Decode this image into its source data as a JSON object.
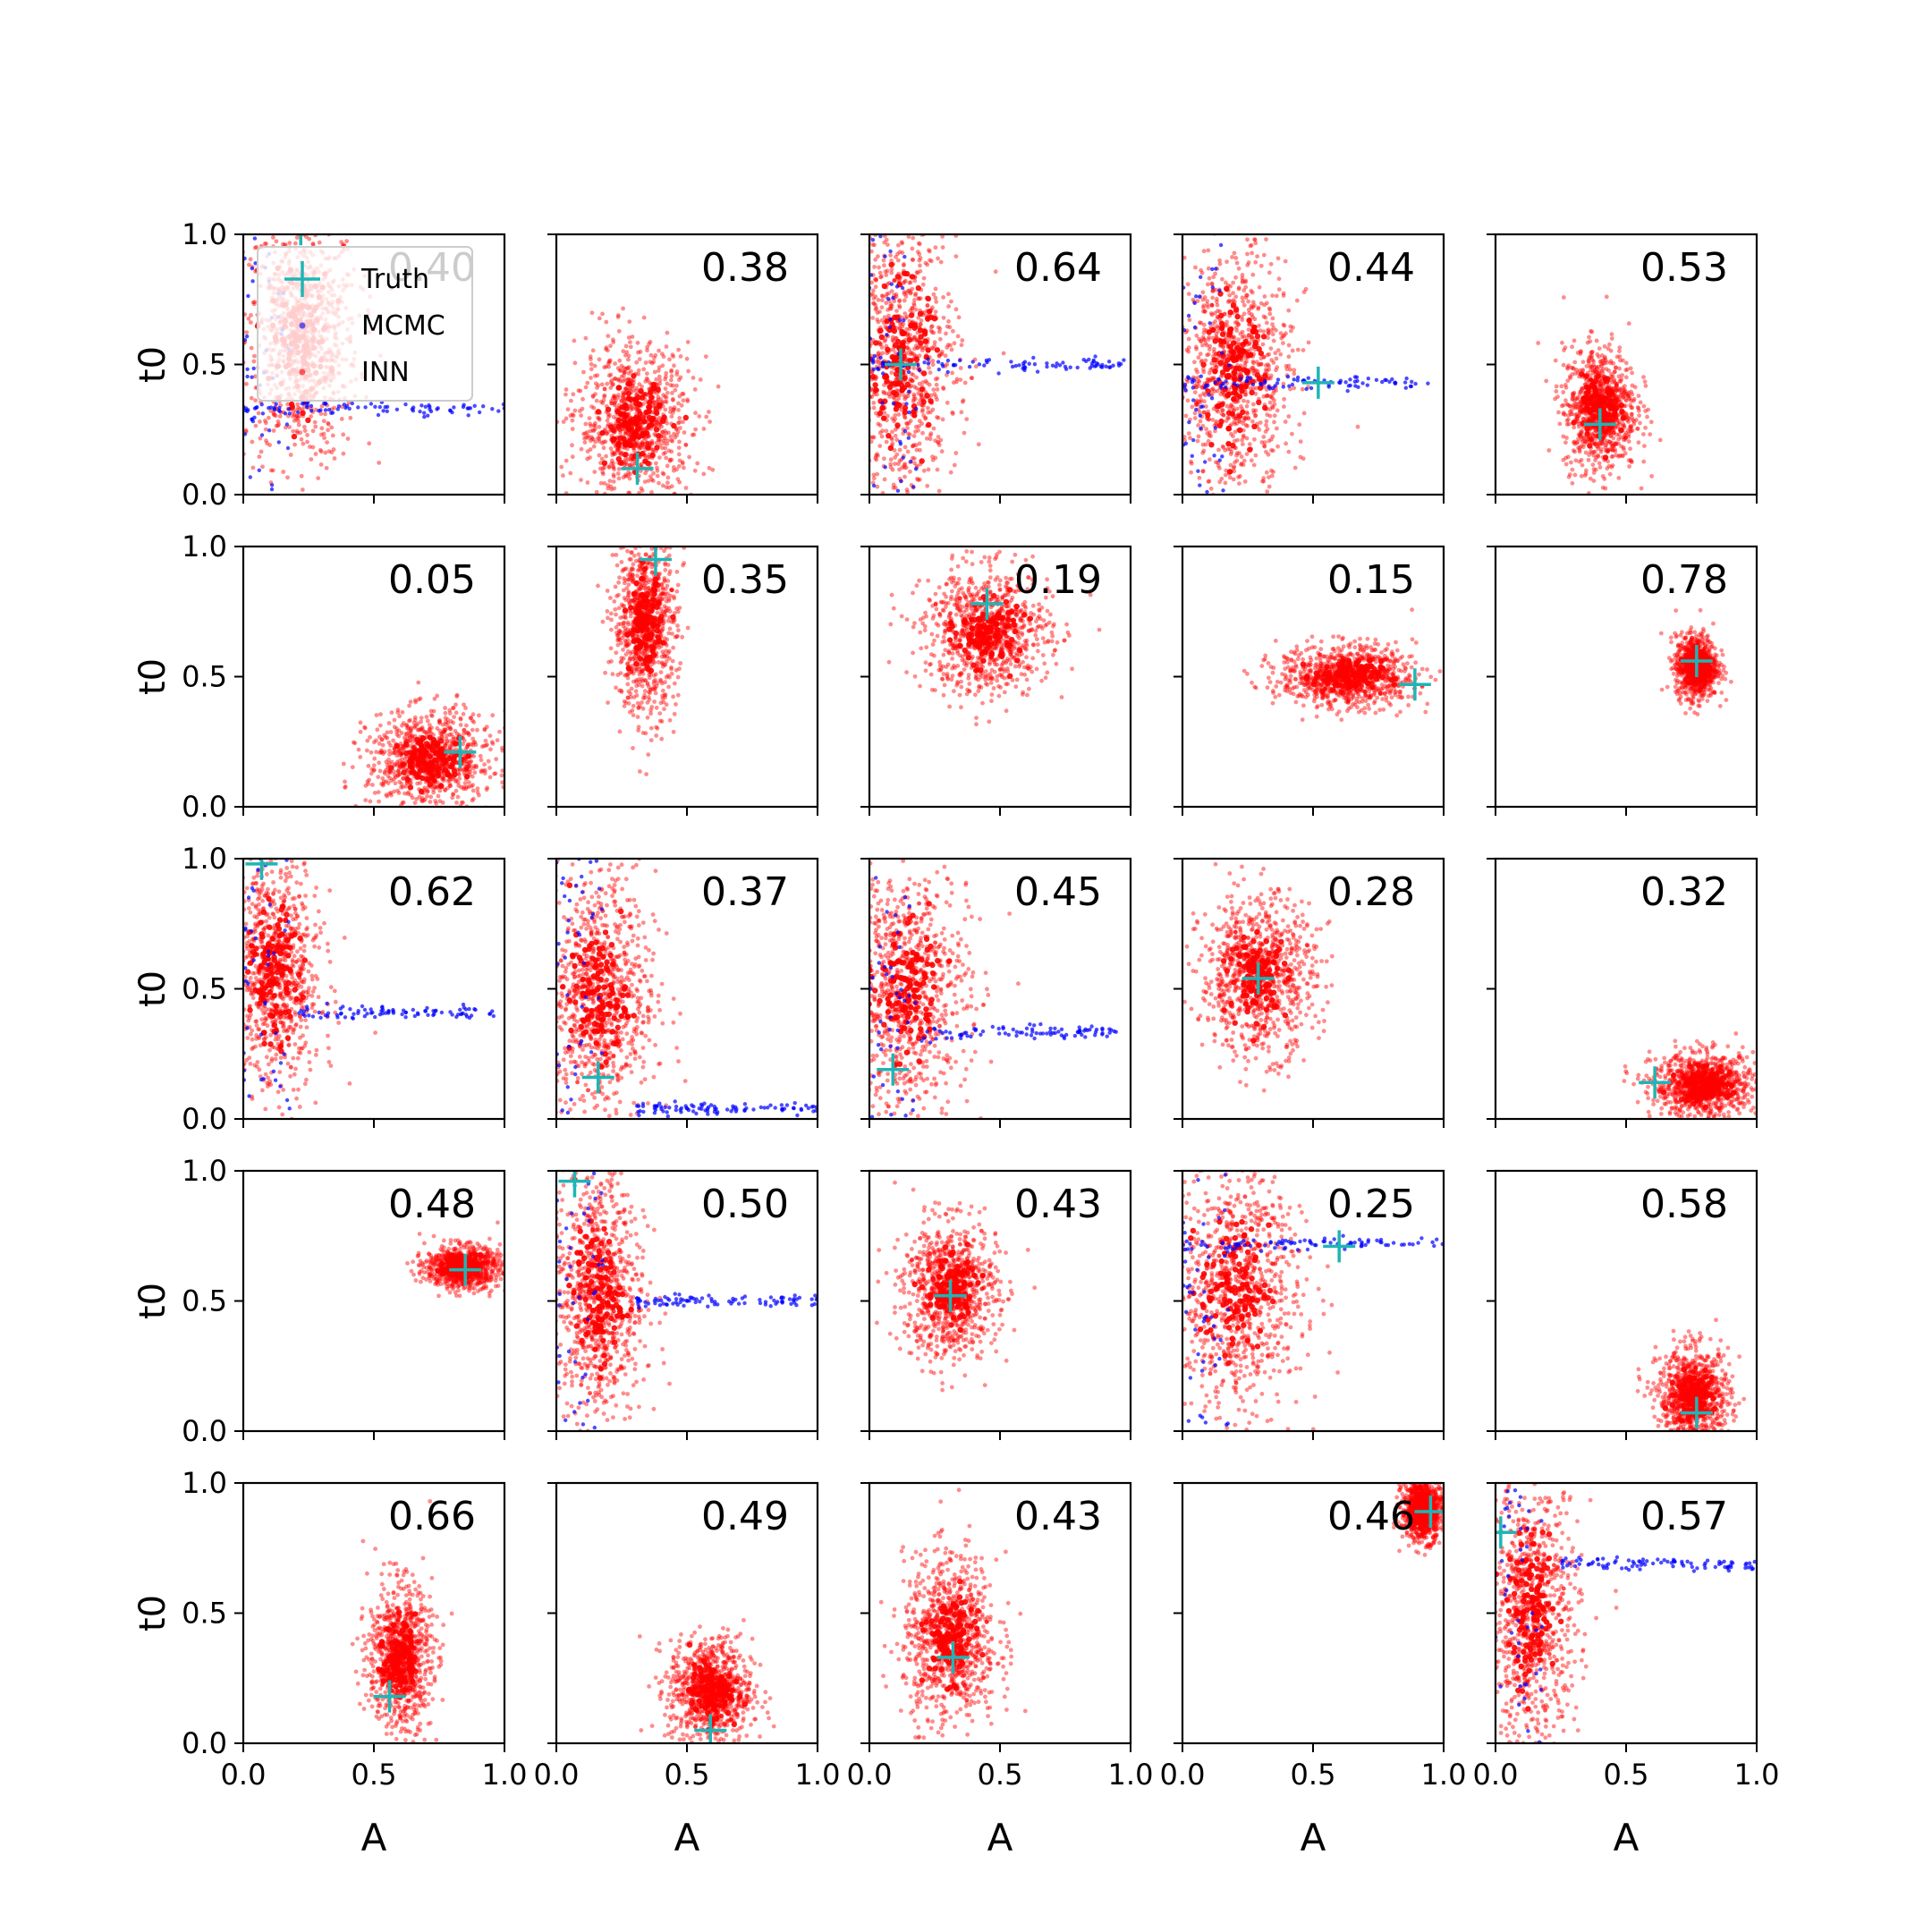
{
  "chart_data": {
    "type": "scatter",
    "grid": {
      "rows": 5,
      "cols": 5
    },
    "xlabel": "A",
    "ylabel": "t0",
    "xlim": [
      0,
      1
    ],
    "ylim": [
      0,
      1
    ],
    "xticks": [
      "0.0",
      "0.5",
      "1.0"
    ],
    "yticks": [
      "0.0",
      "0.5",
      "1.0"
    ],
    "grid_lines": false,
    "legend": {
      "placement": "top-left of first panel",
      "entries": [
        {
          "label": "Truth",
          "marker": "plus",
          "color": "#1fb5b5"
        },
        {
          "label": "MCMC",
          "marker": "dot",
          "color": "#0000ff"
        },
        {
          "label": "INN",
          "marker": "dot",
          "color": "#ff0000"
        }
      ]
    },
    "colors": {
      "truth": "#1fb5b5",
      "mcmc": "#0000ff",
      "inn": "#ff0000"
    },
    "panels": [
      {
        "score": "0.40",
        "truth": [
          0.22,
          1.02
        ],
        "inn": {
          "cx": 0.22,
          "cy": 0.6,
          "sx": 0.11,
          "sy": 0.24
        },
        "mcmc": {
          "shape": "streak",
          "x0": 0.0,
          "x1": 1.0,
          "y": 0.33
        }
      },
      {
        "score": "0.38",
        "truth": [
          0.31,
          0.1
        ],
        "inn": {
          "cx": 0.3,
          "cy": 0.27,
          "sx": 0.11,
          "sy": 0.15
        },
        "mcmc": {
          "shape": "none"
        }
      },
      {
        "score": "0.64",
        "truth": [
          0.12,
          0.5
        ],
        "inn": {
          "cx": 0.12,
          "cy": 0.52,
          "sx": 0.11,
          "sy": 0.28
        },
        "mcmc": {
          "shape": "streak",
          "x0": 0.0,
          "x1": 1.0,
          "y": 0.5
        }
      },
      {
        "score": "0.44",
        "truth": [
          0.52,
          0.43
        ],
        "inn": {
          "cx": 0.2,
          "cy": 0.47,
          "sx": 0.11,
          "sy": 0.23
        },
        "mcmc": {
          "shape": "streak",
          "x0": 0.0,
          "x1": 0.95,
          "y": 0.43
        }
      },
      {
        "score": "0.53",
        "truth": [
          0.4,
          0.27
        ],
        "inn": {
          "cx": 0.4,
          "cy": 0.33,
          "sx": 0.07,
          "sy": 0.12
        },
        "mcmc": {
          "shape": "none"
        }
      },
      {
        "score": "0.05",
        "truth": [
          0.83,
          0.21
        ],
        "inn": {
          "cx": 0.72,
          "cy": 0.18,
          "sx": 0.12,
          "sy": 0.09
        },
        "mcmc": {
          "shape": "none"
        }
      },
      {
        "score": "0.35",
        "truth": [
          0.38,
          0.95
        ],
        "inn": {
          "cx": 0.34,
          "cy": 0.7,
          "sx": 0.06,
          "sy": 0.17
        },
        "mcmc": {
          "shape": "none"
        }
      },
      {
        "score": "0.19",
        "truth": [
          0.45,
          0.78
        ],
        "inn": {
          "cx": 0.45,
          "cy": 0.67,
          "sx": 0.12,
          "sy": 0.12
        },
        "mcmc": {
          "shape": "none"
        }
      },
      {
        "score": "0.15",
        "truth": [
          0.89,
          0.47
        ],
        "inn": {
          "cx": 0.63,
          "cy": 0.5,
          "sx": 0.13,
          "sy": 0.06
        },
        "mcmc": {
          "shape": "none"
        }
      },
      {
        "score": "0.78",
        "truth": [
          0.77,
          0.56
        ],
        "inn": {
          "cx": 0.77,
          "cy": 0.54,
          "sx": 0.04,
          "sy": 0.06
        },
        "mcmc": {
          "shape": "none"
        }
      },
      {
        "score": "0.62",
        "truth": [
          0.07,
          0.98
        ],
        "inn": {
          "cx": 0.12,
          "cy": 0.55,
          "sx": 0.09,
          "sy": 0.24
        },
        "mcmc": {
          "shape": "streak",
          "x0": 0.2,
          "x1": 1.0,
          "y": 0.41
        }
      },
      {
        "score": "0.37",
        "truth": [
          0.16,
          0.16
        ],
        "inn": {
          "cx": 0.16,
          "cy": 0.47,
          "sx": 0.11,
          "sy": 0.24
        },
        "mcmc": {
          "shape": "streak",
          "x0": 0.3,
          "x1": 1.0,
          "y": 0.04
        }
      },
      {
        "score": "0.45",
        "truth": [
          0.09,
          0.19
        ],
        "inn": {
          "cx": 0.14,
          "cy": 0.5,
          "sx": 0.12,
          "sy": 0.24
        },
        "mcmc": {
          "shape": "streak",
          "x0": 0.2,
          "x1": 0.95,
          "y": 0.33
        }
      },
      {
        "score": "0.28",
        "truth": [
          0.29,
          0.54
        ],
        "inn": {
          "cx": 0.29,
          "cy": 0.55,
          "sx": 0.11,
          "sy": 0.15
        },
        "mcmc": {
          "shape": "none"
        }
      },
      {
        "score": "0.32",
        "truth": [
          0.61,
          0.14
        ],
        "inn": {
          "cx": 0.8,
          "cy": 0.13,
          "sx": 0.1,
          "sy": 0.06
        },
        "mcmc": {
          "shape": "none"
        }
      },
      {
        "score": "0.48",
        "truth": [
          0.85,
          0.62
        ],
        "inn": {
          "cx": 0.84,
          "cy": 0.63,
          "sx": 0.07,
          "sy": 0.04
        },
        "mcmc": {
          "shape": "none"
        }
      },
      {
        "score": "0.50",
        "truth": [
          0.07,
          0.96
        ],
        "inn": {
          "cx": 0.16,
          "cy": 0.52,
          "sx": 0.09,
          "sy": 0.25
        },
        "mcmc": {
          "shape": "streak",
          "x0": 0.3,
          "x1": 1.0,
          "y": 0.5
        }
      },
      {
        "score": "0.43",
        "truth": [
          0.31,
          0.52
        ],
        "inn": {
          "cx": 0.31,
          "cy": 0.54,
          "sx": 0.09,
          "sy": 0.13
        },
        "mcmc": {
          "shape": "none"
        }
      },
      {
        "score": "0.25",
        "truth": [
          0.6,
          0.71
        ],
        "inn": {
          "cx": 0.2,
          "cy": 0.55,
          "sx": 0.13,
          "sy": 0.24
        },
        "mcmc": {
          "shape": "streak",
          "x0": 0.0,
          "x1": 1.0,
          "y": 0.72
        }
      },
      {
        "score": "0.58",
        "truth": [
          0.77,
          0.07
        ],
        "inn": {
          "cx": 0.76,
          "cy": 0.13,
          "sx": 0.07,
          "sy": 0.09
        },
        "mcmc": {
          "shape": "none"
        }
      },
      {
        "score": "0.66",
        "truth": [
          0.56,
          0.18
        ],
        "inn": {
          "cx": 0.6,
          "cy": 0.33,
          "sx": 0.06,
          "sy": 0.14
        },
        "mcmc": {
          "shape": "none"
        }
      },
      {
        "score": "0.49",
        "truth": [
          0.59,
          0.05
        ],
        "inn": {
          "cx": 0.59,
          "cy": 0.2,
          "sx": 0.08,
          "sy": 0.1
        },
        "mcmc": {
          "shape": "none"
        }
      },
      {
        "score": "0.43",
        "truth": [
          0.32,
          0.33
        ],
        "inn": {
          "cx": 0.31,
          "cy": 0.4,
          "sx": 0.09,
          "sy": 0.16
        },
        "mcmc": {
          "shape": "none"
        }
      },
      {
        "score": "0.46",
        "truth": [
          0.95,
          0.89
        ],
        "inn": {
          "cx": 0.92,
          "cy": 0.9,
          "sx": 0.04,
          "sy": 0.06
        },
        "mcmc": {
          "shape": "none"
        }
      },
      {
        "score": "0.57",
        "truth": [
          0.02,
          0.81
        ],
        "inn": {
          "cx": 0.14,
          "cy": 0.5,
          "sx": 0.09,
          "sy": 0.25
        },
        "mcmc": {
          "shape": "streak",
          "x0": 0.25,
          "x1": 1.0,
          "y": 0.69
        }
      }
    ]
  }
}
